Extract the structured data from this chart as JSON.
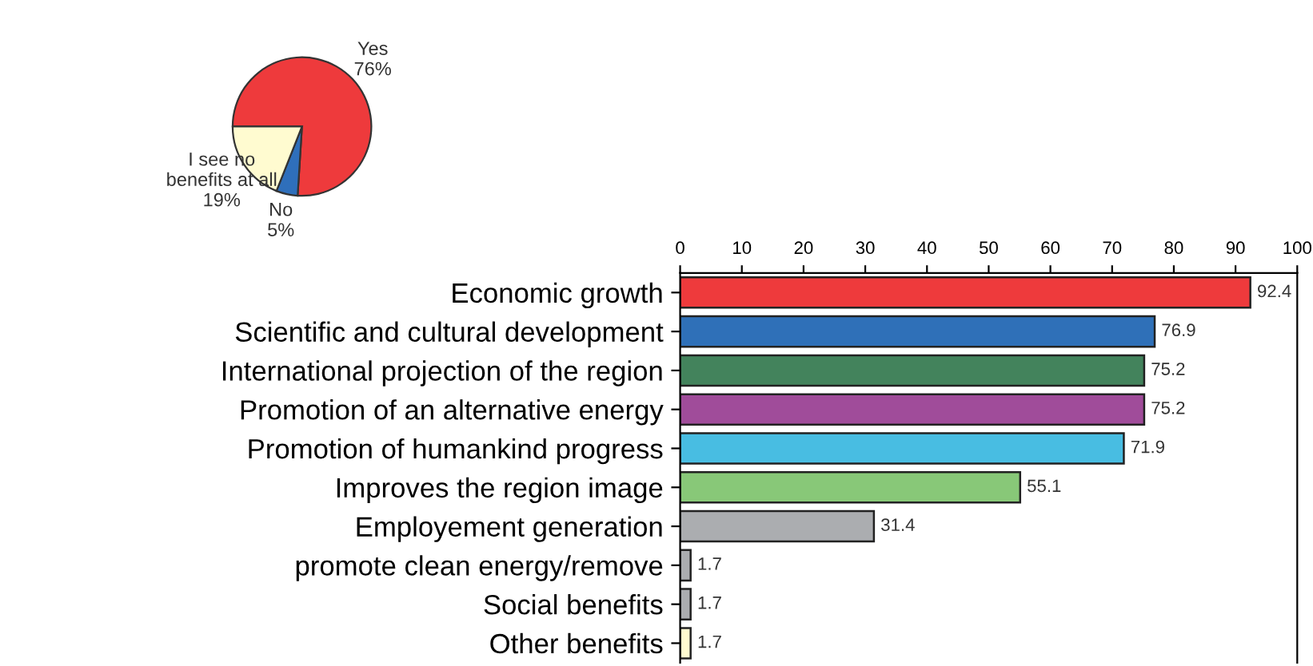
{
  "chart_data": [
    {
      "type": "pie",
      "categories": [
        "Yes",
        "No",
        "I see no\nbenefits at all"
      ],
      "values": [
        76,
        5,
        19
      ],
      "value_labels": [
        "76%",
        "5%",
        "19%"
      ],
      "colors": [
        "#ee3a3c",
        "#2f6fbb",
        "#fffbd0"
      ]
    },
    {
      "type": "bar",
      "orientation": "horizontal",
      "categories": [
        "Economic growth",
        "Scientific and cultural development",
        "International projection of the region",
        "Promotion of an alternative energy",
        "Promotion of humankind progress",
        "Improves the region image",
        "Employement generation",
        "promote clean energy/remove",
        "Social benefits",
        "Other benefits"
      ],
      "values": [
        92.4,
        76.9,
        75.2,
        75.2,
        71.9,
        55.1,
        31.4,
        1.7,
        1.7,
        1.7
      ],
      "colors": [
        "#ee3a3c",
        "#2f70b8",
        "#43835c",
        "#a04c9a",
        "#48bde2",
        "#88c878",
        "#abadb0",
        "#abadb0",
        "#abadb0",
        "#fffbd0"
      ],
      "xlim": [
        0,
        100
      ],
      "xticks": [
        0,
        10,
        20,
        30,
        40,
        50,
        60,
        70,
        80,
        90,
        100
      ],
      "data_labels": true
    }
  ]
}
